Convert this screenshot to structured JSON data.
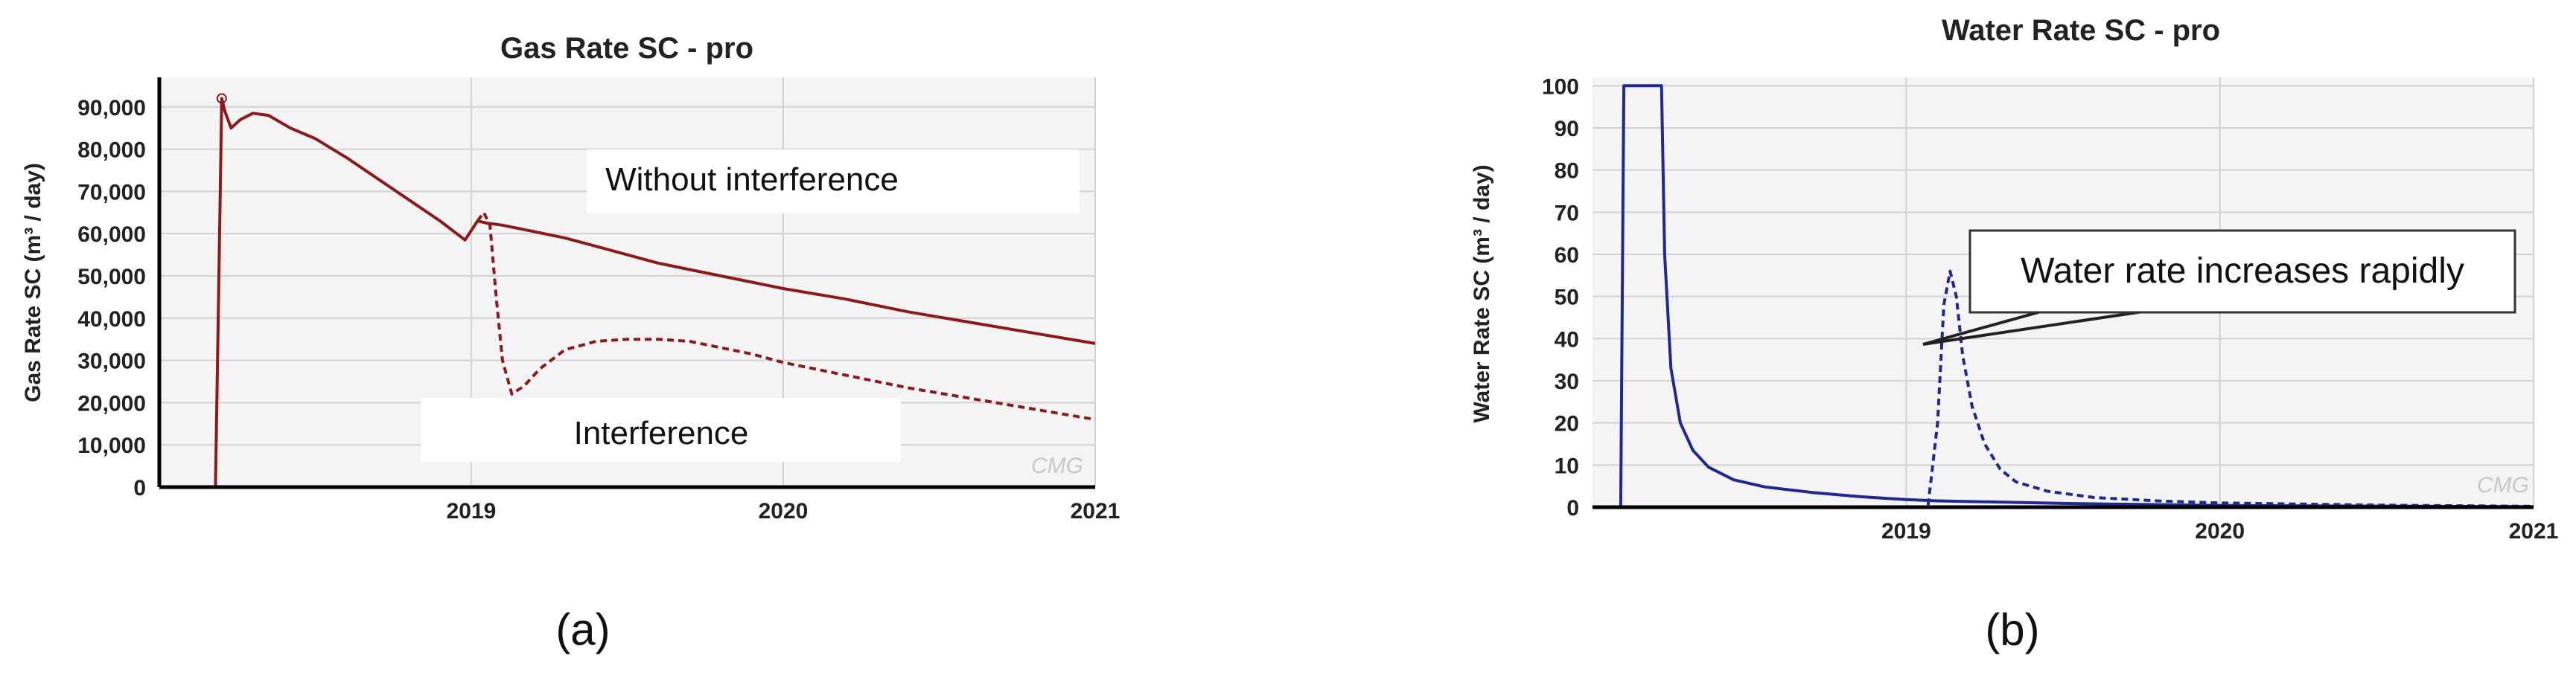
{
  "chart_data": [
    {
      "type": "line",
      "title": "Gas Rate SC - pro",
      "ylabel": "Gas Rate SC (m³ / day)",
      "xlabel": "",
      "x_ticks": [
        "2019",
        "2020",
        "2021"
      ],
      "y_ticks": [
        "0",
        "10,000",
        "20,000",
        "30,000",
        "40,000",
        "50,000",
        "60,000",
        "70,000",
        "80,000",
        "90,000"
      ],
      "xlim": [
        2018.0,
        2021.0
      ],
      "ylim": [
        0,
        97000
      ],
      "grid": true,
      "series": [
        {
          "style": "solid",
          "color": "#8b1a1a",
          "x": [
            2018.0,
            2018.18,
            2018.19,
            2018.2,
            2018.21,
            2018.23,
            2018.26,
            2018.3,
            2018.35,
            2018.42,
            2018.5,
            2018.6,
            2018.7,
            2018.8,
            2018.9,
            2018.98,
            2019.02,
            2019.05,
            2019.1,
            2019.2,
            2019.3,
            2019.4,
            2019.5,
            2019.6,
            2019.7,
            2019.8,
            2019.9,
            2020.0,
            2020.2,
            2020.4,
            2020.6,
            2020.8,
            2021.0
          ],
          "y": [
            0,
            0,
            45000,
            92000,
            89000,
            85000,
            87000,
            88500,
            88000,
            85000,
            82500,
            78000,
            73000,
            68000,
            63000,
            58500,
            63000,
            62500,
            62000,
            60500,
            59000,
            57000,
            55000,
            53000,
            51500,
            50000,
            48500,
            47000,
            44500,
            41500,
            39000,
            36500,
            34000
          ]
        },
        {
          "style": "dashed",
          "color": "#8b1a1a",
          "x": [
            2019.02,
            2019.04,
            2019.06,
            2019.08,
            2019.1,
            2019.13,
            2019.17,
            2019.22,
            2019.3,
            2019.4,
            2019.5,
            2019.6,
            2019.7,
            2019.8,
            2019.9,
            2020.0,
            2020.2,
            2020.4,
            2020.6,
            2020.8,
            2021.0
          ],
          "y": [
            63000,
            65000,
            62000,
            45000,
            30000,
            22000,
            24000,
            28000,
            32500,
            34500,
            35000,
            35000,
            34500,
            33000,
            31500,
            29500,
            26500,
            23500,
            21000,
            18500,
            16000
          ]
        }
      ],
      "annotations": [
        "Without interference",
        "Interference"
      ],
      "watermark": "CMG"
    },
    {
      "type": "line",
      "title": "Water Rate SC - pro",
      "ylabel": "Water Rate SC (m³ / day)",
      "xlabel": "",
      "x_ticks": [
        "2019",
        "2020",
        "2021"
      ],
      "y_ticks": [
        "0",
        "10",
        "20",
        "30",
        "40",
        "50",
        "60",
        "70",
        "80",
        "90",
        "100"
      ],
      "xlim": [
        2018.0,
        2021.0
      ],
      "ylim": [
        0,
        102
      ],
      "grid": true,
      "series": [
        {
          "style": "solid",
          "color": "#1f2a8f",
          "x": [
            2018.0,
            2018.09,
            2018.1,
            2018.22,
            2018.23,
            2018.25,
            2018.28,
            2018.32,
            2018.37,
            2018.45,
            2018.55,
            2018.7,
            2018.85,
            2019.0,
            2019.1,
            2019.5,
            2020.0,
            2021.0
          ],
          "y": [
            0,
            0,
            100,
            100,
            60,
            33,
            20,
            13.5,
            9.5,
            6.5,
            4.8,
            3.5,
            2.5,
            1.8,
            1.5,
            0.9,
            0.4,
            0.1
          ]
        },
        {
          "style": "dashed",
          "color": "#1f2a8f",
          "x": [
            2019.07,
            2019.1,
            2019.12,
            2019.14,
            2019.16,
            2019.18,
            2019.21,
            2019.25,
            2019.3,
            2019.35,
            2019.45,
            2019.6,
            2019.8,
            2020.0,
            2020.5,
            2021.0
          ],
          "y": [
            0.5,
            20,
            48,
            56,
            50,
            36,
            24,
            15,
            9,
            6,
            3.8,
            2.3,
            1.5,
            1.0,
            0.5,
            0.2
          ]
        }
      ],
      "annotations": [
        "Water rate increases rapidly"
      ],
      "watermark": "CMG"
    }
  ],
  "captions": [
    "(a)",
    "(b)"
  ]
}
